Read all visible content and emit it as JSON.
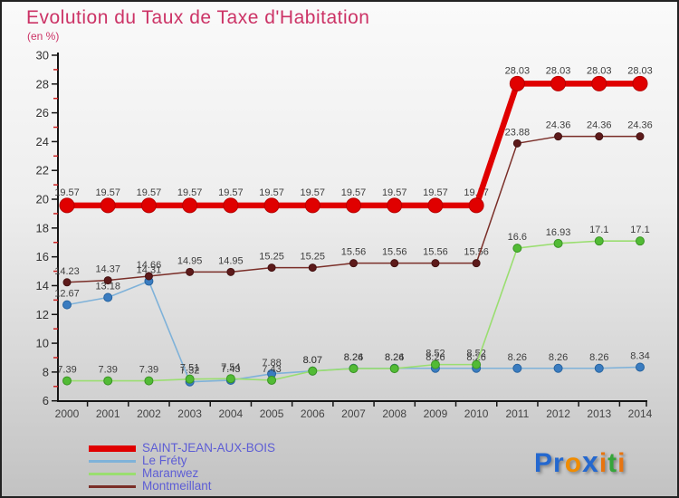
{
  "chart_data": {
    "type": "line",
    "title": "Evolution du Taux de Taxe d'Habitation",
    "subtitle": "(en %)",
    "x": [
      "2000",
      "2001",
      "2002",
      "2003",
      "2004",
      "2005",
      "2006",
      "2007",
      "2008",
      "2009",
      "2010",
      "2011",
      "2012",
      "2013",
      "2014"
    ],
    "ylim": [
      6,
      30
    ],
    "ytick_step": 2,
    "grid": false,
    "legend_position": "bottom-left",
    "series": [
      {
        "id": "sjab",
        "name": "SAINT-JEAN-AUX-BOIS",
        "values": [
          19.57,
          19.57,
          19.57,
          19.57,
          19.57,
          19.57,
          19.57,
          19.57,
          19.57,
          19.57,
          19.57,
          28.03,
          28.03,
          28.03,
          28.03
        ],
        "line_color": "#e00000",
        "dot_color": "#e00000",
        "dot_edge": "#b80000",
        "line_width": 6.5,
        "dot_radius": 8,
        "label_dy": -11
      },
      {
        "id": "le-frety",
        "name": "Le Fréty",
        "values": [
          12.67,
          13.18,
          14.31,
          7.32,
          7.43,
          7.88,
          8.07,
          8.26,
          8.26,
          8.26,
          8.26,
          8.26,
          8.26,
          8.26,
          8.34
        ],
        "line_color": "#7fb2d9",
        "dot_color": "#3a7cc0",
        "dot_edge": "#26639f",
        "line_width": 1.6,
        "dot_radius": 4.5,
        "label_dy": -9
      },
      {
        "id": "maranwez",
        "name": "Maranwez",
        "values": [
          7.39,
          7.39,
          7.39,
          7.51,
          7.54,
          7.43,
          8.07,
          8.24,
          8.24,
          8.52,
          8.52,
          16.6,
          16.93,
          17.1,
          17.1
        ],
        "line_color": "#9ade70",
        "dot_color": "#52bb35",
        "dot_edge": "#3a9424",
        "line_width": 1.6,
        "dot_radius": 4.5,
        "label_dy": -9
      },
      {
        "id": "montmeillant",
        "name": "Montmeillant",
        "values": [
          14.23,
          14.37,
          14.66,
          14.95,
          14.95,
          15.25,
          15.25,
          15.56,
          15.56,
          15.56,
          15.56,
          23.88,
          24.36,
          24.36,
          24.36
        ],
        "line_color": "#7a2e28",
        "dot_color": "#5d1a1a",
        "dot_edge": "#451212",
        "line_width": 1.5,
        "dot_radius": 4,
        "label_dy": -9
      }
    ]
  },
  "theme": {
    "title_color": "#cc3366",
    "axis_color": "#151515",
    "minor_tick_color": "#cc2222",
    "ytick_label_color": "#333333",
    "xtick_label_color": "#444444",
    "data_label_color": "#3e3e3e",
    "legend_text_color": "#5d5dd5"
  },
  "logo": {
    "letters": [
      {
        "ch": "P",
        "color": "#2468cf"
      },
      {
        "ch": "r",
        "color": "#2468cf"
      },
      {
        "ch": "o",
        "color": "#f08c00"
      },
      {
        "ch": "x",
        "color": "#2468cf"
      },
      {
        "ch": "i",
        "color": "#e87410"
      },
      {
        "ch": "t",
        "color": "#35a53a"
      },
      {
        "ch": "i",
        "color": "#e87410"
      }
    ]
  }
}
